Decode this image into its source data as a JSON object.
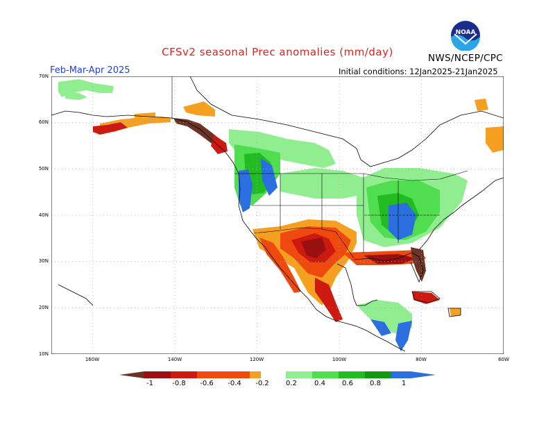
{
  "header": {
    "title": "CFSv2 seasonal Prec anomalies (mm/day)",
    "season": "Feb-Mar-Apr 2025",
    "initial_conditions": "Initial conditions: 12Jan2025-21Jan2025",
    "agency": "NWS/NCEP/CPC",
    "logo_text": "NOAA"
  },
  "axes": {
    "lat_labels": [
      "70N",
      "60N",
      "50N",
      "40N",
      "30N",
      "20N",
      "10N"
    ],
    "lon_labels": [
      "160W",
      "140W",
      "120W",
      "100W",
      "80W",
      "60W"
    ]
  },
  "colorbar": {
    "labels": [
      "-1",
      "-0.8",
      "-0.6",
      "-0.4",
      "-0.2",
      "0.2",
      "0.4",
      "0.6",
      "0.8",
      "1"
    ],
    "colors": [
      "#6b3424",
      "#9a1010",
      "#cc1a10",
      "#ee4a10",
      "#f5a020",
      "#ffffff",
      "#90ee90",
      "#50dd50",
      "#22bb22",
      "#119911",
      "#2a6ee0"
    ]
  },
  "colors": {
    "title": "#e02020",
    "season": "#2040e0",
    "grid": "#aaaaaa"
  }
}
